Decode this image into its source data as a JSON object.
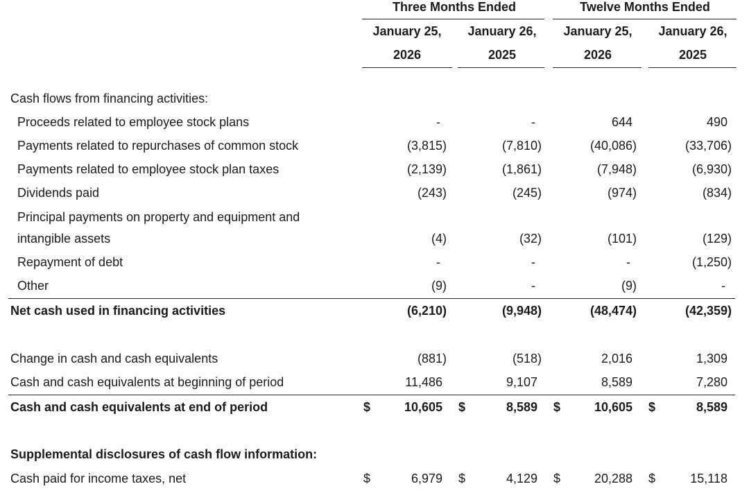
{
  "header": {
    "groups": [
      "Three Months Ended",
      "Twelve Months Ended"
    ],
    "columns": [
      [
        "January 25,",
        "2026"
      ],
      [
        "January 26,",
        "2025"
      ],
      [
        "January 25,",
        "2026"
      ],
      [
        "January 26,",
        "2025"
      ]
    ]
  },
  "table": {
    "rows": [
      {
        "label": [
          "Cash flows from financing activities:"
        ]
      },
      {
        "label": [
          "Proceeds related to employee stock plans"
        ],
        "values": [
          "-",
          "-",
          "644",
          "490"
        ]
      },
      {
        "label": [
          "Payments related to repurchases of common stock"
        ],
        "values": [
          "(3,815)",
          "(7,810)",
          "(40,086)",
          "(33,706)"
        ]
      },
      {
        "label": [
          "Payments related to employee stock plan taxes"
        ],
        "values": [
          "(2,139)",
          "(1,861)",
          "(7,948)",
          "(6,930)"
        ]
      },
      {
        "label": [
          "Dividends paid"
        ],
        "values": [
          "(243)",
          "(245)",
          "(974)",
          "(834)"
        ]
      },
      {
        "label": [
          "Principal payments on property and equipment and",
          "intangible assets"
        ],
        "values": [
          "(4)",
          "(32)",
          "(101)",
          "(129)"
        ]
      },
      {
        "label": [
          "Repayment of debt"
        ],
        "values": [
          "-",
          "-",
          "-",
          "(1,250)"
        ]
      },
      {
        "label": [
          "Other"
        ],
        "values": [
          "(9)",
          "-",
          "(9)",
          "-"
        ]
      },
      {
        "label": [
          "Net cash used in financing activities"
        ],
        "values": [
          "(6,210)",
          "(9,948)",
          "(48,474)",
          "(42,359)"
        ],
        "bold": true
      },
      {
        "label": [
          "Change in cash and cash equivalents"
        ],
        "values": [
          "(881)",
          "(518)",
          "2,016",
          "1,309"
        ]
      },
      {
        "label": [
          "Cash and cash equivalents at beginning of period"
        ],
        "values": [
          "11,486",
          "9,107",
          "8,589",
          "7,280"
        ]
      },
      {
        "label": [
          "Cash and cash equivalents at end of period"
        ],
        "values": [
          "10,605",
          "8,589",
          "10,605",
          "8,589"
        ],
        "currency": "$",
        "bold": true
      },
      {
        "label": [
          "Supplemental disclosures of cash flow information:"
        ],
        "bold": true
      },
      {
        "label": [
          "Cash paid for income taxes, net"
        ],
        "values": [
          "6,979",
          "4,129",
          "20,288",
          "15,118"
        ],
        "currency": "$"
      }
    ]
  }
}
